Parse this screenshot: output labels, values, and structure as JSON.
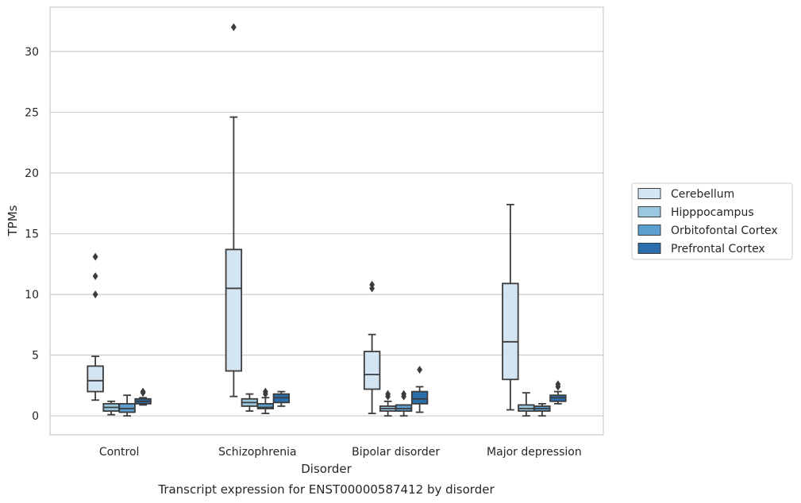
{
  "chart_data": {
    "type": "box",
    "title": "",
    "caption": "Transcript expression for ENST00000587412 by disorder",
    "xlabel": "Disorder",
    "ylabel": "TPMs",
    "ylim": [
      -1.6,
      33.6
    ],
    "yticks": [
      0,
      5,
      10,
      15,
      20,
      25,
      30
    ],
    "grid": "horizontal",
    "legend_position": "right",
    "categories": [
      "Control",
      "Schizophrenia",
      "Bipolar disorder",
      "Major depression"
    ],
    "series": [
      {
        "name": "Cerebellum",
        "color": "#d3e4f3",
        "boxes": [
          {
            "whislo": 1.3,
            "q1": 2.0,
            "med": 2.9,
            "q3": 4.1,
            "whishi": 4.9,
            "fliers": [
              10.0,
              11.5,
              13.1
            ]
          },
          {
            "whislo": 1.6,
            "q1": 3.7,
            "med": 10.5,
            "q3": 13.7,
            "whishi": 24.6,
            "fliers": [
              32.0
            ]
          },
          {
            "whislo": 0.2,
            "q1": 2.2,
            "med": 3.4,
            "q3": 5.3,
            "whishi": 6.7,
            "fliers": [
              10.5,
              10.8
            ]
          },
          {
            "whislo": 0.5,
            "q1": 3.0,
            "med": 6.1,
            "q3": 10.9,
            "whishi": 17.4,
            "fliers": []
          }
        ]
      },
      {
        "name": "Hipppocampus",
        "color": "#9ac8e0",
        "boxes": [
          {
            "whislo": 0.1,
            "q1": 0.4,
            "med": 0.7,
            "q3": 1.0,
            "whishi": 1.2,
            "fliers": []
          },
          {
            "whislo": 0.4,
            "q1": 0.8,
            "med": 1.1,
            "q3": 1.4,
            "whishi": 1.8,
            "fliers": []
          },
          {
            "whislo": 0.0,
            "q1": 0.4,
            "med": 0.6,
            "q3": 0.8,
            "whishi": 1.2,
            "fliers": [
              1.6,
              1.8
            ]
          },
          {
            "whislo": 0.0,
            "q1": 0.4,
            "med": 0.6,
            "q3": 0.9,
            "whishi": 1.9,
            "fliers": []
          }
        ]
      },
      {
        "name": "Orbitofontal Cortex",
        "color": "#5a9fcf",
        "boxes": [
          {
            "whislo": 0.0,
            "q1": 0.3,
            "med": 0.6,
            "q3": 1.0,
            "whishi": 1.7,
            "fliers": []
          },
          {
            "whislo": 0.2,
            "q1": 0.6,
            "med": 0.7,
            "q3": 1.0,
            "whishi": 1.5,
            "fliers": [
              1.8,
              2.0
            ]
          },
          {
            "whislo": 0.0,
            "q1": 0.4,
            "med": 0.6,
            "q3": 0.9,
            "whishi": 0.9,
            "fliers": [
              1.6,
              1.8
            ]
          },
          {
            "whislo": 0.0,
            "q1": 0.4,
            "med": 0.6,
            "q3": 0.8,
            "whishi": 1.0,
            "fliers": []
          }
        ]
      },
      {
        "name": "Prefrontal Cortex",
        "color": "#2c6dab",
        "boxes": [
          {
            "whislo": 0.9,
            "q1": 1.0,
            "med": 1.2,
            "q3": 1.4,
            "whishi": 1.5,
            "fliers": [
              1.9,
              2.0
            ]
          },
          {
            "whislo": 0.8,
            "q1": 1.1,
            "med": 1.5,
            "q3": 1.8,
            "whishi": 2.0,
            "fliers": []
          },
          {
            "whislo": 0.3,
            "q1": 1.0,
            "med": 1.4,
            "q3": 2.0,
            "whishi": 2.4,
            "fliers": [
              3.8
            ]
          },
          {
            "whislo": 1.0,
            "q1": 1.2,
            "med": 1.5,
            "q3": 1.7,
            "whishi": 2.0,
            "fliers": [
              2.4,
              2.6
            ]
          }
        ]
      }
    ]
  }
}
